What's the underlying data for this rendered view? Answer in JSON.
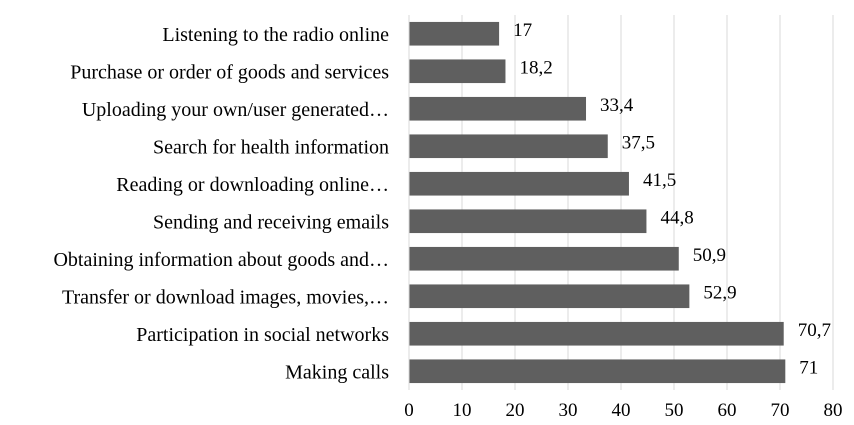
{
  "chart_data": {
    "type": "bar",
    "orientation": "horizontal",
    "categories": [
      "Listening to the radio online",
      "Purchase or order of goods and services",
      "Uploading your own/user generated…",
      "Search for health information",
      "Reading or downloading online…",
      "Sending and receiving emails",
      "Obtaining information about goods and…",
      "Transfer or download images, movies,…",
      "Participation in social networks",
      "Making calls"
    ],
    "values": [
      17,
      18.2,
      33.4,
      37.5,
      41.5,
      44.8,
      50.9,
      52.9,
      70.7,
      71
    ],
    "value_labels": [
      "17",
      "18,2",
      "33,4",
      "37,5",
      "41,5",
      "44,8",
      "50,9",
      "52,9",
      "70,7",
      "71"
    ],
    "xlim": [
      0,
      80
    ],
    "x_ticks": [
      "0",
      "10",
      "20",
      "30",
      "40",
      "50",
      "60",
      "70",
      "80"
    ],
    "grid": "vertical",
    "bar_color": "#5f5f5f",
    "grid_color": "#d9d9d9",
    "title": "",
    "xlabel": "",
    "ylabel": ""
  }
}
